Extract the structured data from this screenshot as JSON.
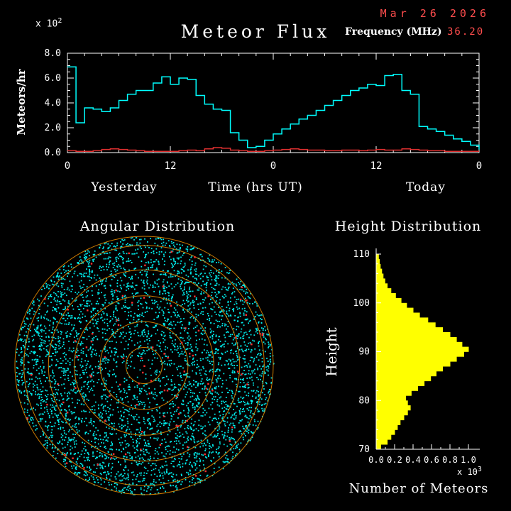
{
  "header": {
    "date": "Mar 26 2026",
    "frequency_label": "Frequency (MHz)",
    "frequency_value": "36.20"
  },
  "colors": {
    "background": "#000000",
    "accent_red": "#ff4d4d",
    "trace_cyan": "#00ffff",
    "trace_red": "#e03030",
    "histogram_yellow": "#ffff00",
    "ring_orange": "#cc7a00",
    "axis_white": "#ffffff"
  },
  "chart_data": [
    {
      "id": "flux",
      "type": "line",
      "title": "Meteor Flux",
      "ylabel": "Meteors/hr",
      "y_mult_base": "x 10",
      "y_mult_exp": "2",
      "xlabel": "Time (hrs UT)",
      "x_region_labels": [
        "Yesterday",
        "Today"
      ],
      "xlim": [
        0,
        48
      ],
      "ylim": [
        0,
        8
      ],
      "xticks": [
        0,
        12,
        24,
        36,
        48
      ],
      "xtick_labels": [
        "0",
        "12",
        "0",
        "12",
        "0"
      ],
      "x_minor_step": 2,
      "yticks": [
        0,
        2,
        4,
        6,
        8
      ],
      "ytick_labels": [
        "0.0",
        "2.0",
        "4.0",
        "6.0",
        "8.0"
      ],
      "y_minor_step": 0.5,
      "grid": false,
      "series": [
        {
          "name": "meteor-rate",
          "color": "#00ffff",
          "step_hours": 1,
          "end_value": 0.25,
          "values": [
            6.9,
            2.4,
            3.6,
            3.5,
            3.3,
            3.6,
            4.2,
            4.7,
            5.0,
            5.0,
            5.6,
            6.1,
            5.5,
            6.0,
            5.9,
            4.6,
            3.9,
            3.5,
            3.4,
            1.6,
            1.0,
            0.4,
            0.5,
            1.0,
            1.5,
            1.9,
            2.3,
            2.7,
            3.0,
            3.4,
            3.8,
            4.2,
            4.6,
            5.0,
            5.2,
            5.5,
            5.4,
            6.2,
            6.3,
            5.0,
            4.7,
            2.1,
            1.9,
            1.7,
            1.4,
            1.1,
            0.9,
            0.6
          ]
        },
        {
          "name": "background-rate",
          "color": "#e03030",
          "step_hours": 1,
          "end_value": 0.1,
          "values": [
            0.15,
            0.1,
            0.1,
            0.15,
            0.25,
            0.3,
            0.25,
            0.2,
            0.15,
            0.1,
            0.1,
            0.1,
            0.1,
            0.15,
            0.2,
            0.15,
            0.3,
            0.4,
            0.35,
            0.2,
            0.15,
            0.1,
            0.1,
            0.15,
            0.2,
            0.25,
            0.3,
            0.25,
            0.2,
            0.2,
            0.15,
            0.15,
            0.2,
            0.2,
            0.15,
            0.2,
            0.25,
            0.2,
            0.2,
            0.3,
            0.25,
            0.2,
            0.15,
            0.15,
            0.1,
            0.1,
            0.1,
            0.1
          ]
        }
      ]
    },
    {
      "id": "angular",
      "type": "scatter",
      "title": "Angular Distribution",
      "n_points_cyan": 4600,
      "n_points_red": 95,
      "point_color": "#00e8e8",
      "red_point_color": "#ff3030",
      "ring_color": "#cc7a00",
      "ring_fractions": [
        0.14,
        0.34,
        0.54,
        0.74,
        0.93,
        1.0
      ],
      "seed": 42
    },
    {
      "id": "height",
      "type": "bar",
      "title": "Height Distribution",
      "ylabel": "Height",
      "xlabel": "Number of Meteors",
      "x_mult_base": "x 10",
      "x_mult_exp": "3",
      "orientation": "horizontal",
      "xlim": [
        0,
        1000
      ],
      "ylim": [
        70,
        110
      ],
      "xticks": [
        0,
        200,
        400,
        600,
        800,
        1000
      ],
      "xtick_labels": [
        "0.0",
        "0.2",
        "0.4",
        "0.6",
        "0.8",
        "1.0"
      ],
      "x_minor_step": 100,
      "yticks": [
        70,
        80,
        90,
        100,
        110
      ],
      "y_minor_step": 2,
      "bar_color": "#ffff00",
      "bin_start": 70,
      "bin_size": 1,
      "values": [
        50,
        120,
        160,
        200,
        230,
        260,
        300,
        340,
        370,
        340,
        320,
        380,
        450,
        520,
        590,
        650,
        720,
        800,
        870,
        950,
        1000,
        930,
        870,
        800,
        720,
        640,
        560,
        470,
        400,
        330,
        270,
        210,
        160,
        120,
        95,
        75,
        60,
        45,
        35,
        25
      ]
    }
  ]
}
